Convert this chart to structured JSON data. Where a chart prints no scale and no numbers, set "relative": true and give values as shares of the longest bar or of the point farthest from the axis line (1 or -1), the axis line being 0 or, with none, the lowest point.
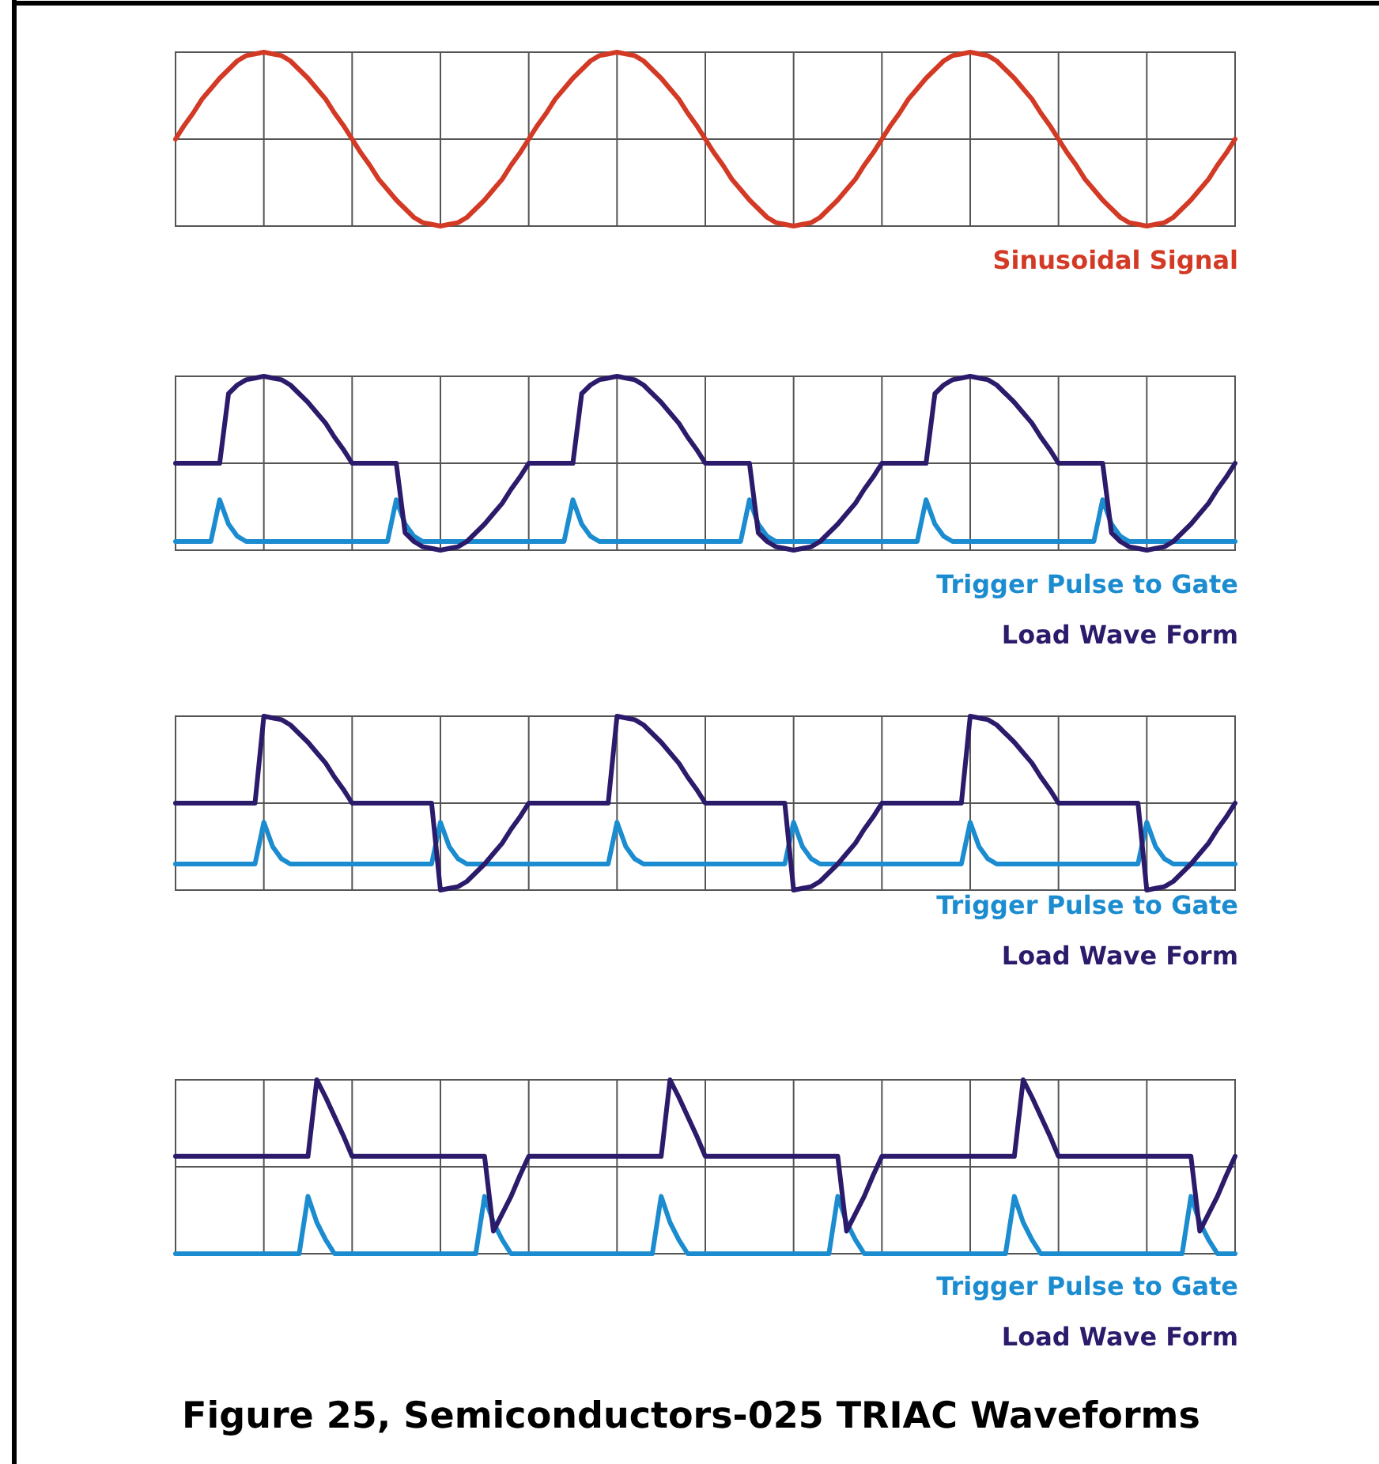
{
  "chart_data": [
    {
      "type": "line",
      "relative": true,
      "grid": true,
      "legend": "bottom right",
      "categories": [
        null,
        null,
        null,
        null,
        null,
        null,
        null,
        null,
        null,
        null,
        null,
        null,
        null,
        null,
        null,
        null,
        null,
        null,
        null,
        null,
        null,
        null,
        null,
        null,
        null,
        null,
        null,
        null,
        null,
        null,
        null,
        null,
        null,
        null,
        null,
        null,
        null,
        null,
        null,
        null,
        null,
        null,
        null,
        null,
        null,
        null,
        null,
        null,
        null,
        null,
        null,
        null,
        null,
        null,
        null,
        null,
        null,
        null,
        null,
        null,
        null,
        null,
        null,
        null,
        null,
        null,
        null,
        null,
        null,
        null,
        null,
        null,
        null,
        null,
        null,
        null,
        null,
        null,
        null,
        null,
        null,
        null,
        null,
        null,
        null,
        null,
        null,
        null,
        null,
        null,
        null,
        null,
        null,
        null,
        null,
        null,
        null,
        null,
        null,
        null,
        null,
        null,
        null,
        null,
        null,
        null,
        null,
        null,
        null,
        null,
        null,
        null,
        null,
        null,
        null,
        null,
        null,
        null,
        null,
        null,
        null
      ],
      "series": [
        {
          "name": "Sinusoidal Signal",
          "color": "#d33a25",
          "values": [
            0.5,
            0.58,
            0.65,
            0.73,
            0.79,
            0.85,
            0.9,
            0.95,
            0.98,
            0.99,
            1,
            0.99,
            0.98,
            0.95,
            0.9,
            0.85,
            0.79,
            0.73,
            0.65,
            0.58,
            0.5,
            0.42,
            0.35,
            0.27,
            0.21,
            0.15,
            0.1,
            0.05,
            0.02,
            0.01,
            0,
            0.01,
            0.02,
            0.05,
            0.1,
            0.15,
            0.21,
            0.27,
            0.35,
            0.42,
            0.5,
            0.58,
            0.65,
            0.73,
            0.79,
            0.85,
            0.9,
            0.95,
            0.98,
            0.99,
            1,
            0.99,
            0.98,
            0.95,
            0.9,
            0.85,
            0.79,
            0.73,
            0.65,
            0.58,
            0.5,
            0.42,
            0.35,
            0.27,
            0.21,
            0.15,
            0.1,
            0.05,
            0.02,
            0.01,
            0,
            0.01,
            0.02,
            0.05,
            0.1,
            0.15,
            0.21,
            0.27,
            0.35,
            0.42,
            0.5,
            0.58,
            0.65,
            0.73,
            0.79,
            0.85,
            0.9,
            0.95,
            0.98,
            0.99,
            1,
            0.99,
            0.98,
            0.95,
            0.9,
            0.85,
            0.79,
            0.73,
            0.65,
            0.58,
            0.5,
            0.42,
            0.35,
            0.27,
            0.21,
            0.15,
            0.1,
            0.05,
            0.02,
            0.01,
            0,
            0.01,
            0.02,
            0.05,
            0.1,
            0.15,
            0.21,
            0.27,
            0.35,
            0.42,
            0.5
          ]
        }
      ]
    },
    {
      "type": "line",
      "relative": true,
      "grid": true,
      "legend": "bottom right",
      "categories": [
        null,
        null,
        null,
        null,
        null,
        null,
        null,
        null,
        null,
        null,
        null,
        null,
        null,
        null,
        null,
        null,
        null,
        null,
        null,
        null,
        null,
        null,
        null,
        null,
        null,
        null,
        null,
        null,
        null,
        null,
        null,
        null,
        null,
        null,
        null,
        null,
        null,
        null,
        null,
        null,
        null,
        null,
        null,
        null,
        null,
        null,
        null,
        null,
        null,
        null,
        null,
        null,
        null,
        null,
        null,
        null,
        null,
        null,
        null,
        null,
        null,
        null,
        null,
        null,
        null,
        null,
        null,
        null,
        null,
        null,
        null,
        null,
        null,
        null,
        null,
        null,
        null,
        null,
        null,
        null,
        null,
        null,
        null,
        null,
        null,
        null,
        null,
        null,
        null,
        null,
        null,
        null,
        null,
        null,
        null,
        null,
        null,
        null,
        null,
        null,
        null,
        null,
        null,
        null,
        null,
        null,
        null,
        null,
        null,
        null,
        null,
        null,
        null,
        null,
        null,
        null,
        null,
        null,
        null,
        null,
        null
      ],
      "series": [
        {
          "name": "Trigger Pulse to Gate",
          "color": "#1b8ccf",
          "values": [
            0.05,
            0.05,
            0.05,
            0.05,
            0.05,
            0.29,
            0.15,
            0.08,
            0.05,
            0.05,
            0.05,
            0.05,
            0.05,
            0.05,
            0.05,
            0.05,
            0.05,
            0.05,
            0.05,
            0.05,
            0.05,
            0.05,
            0.05,
            0.05,
            0.05,
            0.29,
            0.15,
            0.08,
            0.05,
            0.05,
            0.05,
            0.05,
            0.05,
            0.05,
            0.05,
            0.05,
            0.05,
            0.05,
            0.05,
            0.05,
            0.05,
            0.05,
            0.05,
            0.05,
            0.05,
            0.29,
            0.15,
            0.08,
            0.05,
            0.05,
            0.05,
            0.05,
            0.05,
            0.05,
            0.05,
            0.05,
            0.05,
            0.05,
            0.05,
            0.05,
            0.05,
            0.05,
            0.05,
            0.05,
            0.05,
            0.29,
            0.15,
            0.08,
            0.05,
            0.05,
            0.05,
            0.05,
            0.05,
            0.05,
            0.05,
            0.05,
            0.05,
            0.05,
            0.05,
            0.05,
            0.05,
            0.05,
            0.05,
            0.05,
            0.05,
            0.29,
            0.15,
            0.08,
            0.05,
            0.05,
            0.05,
            0.05,
            0.05,
            0.05,
            0.05,
            0.05,
            0.05,
            0.05,
            0.05,
            0.05,
            0.05,
            0.05,
            0.05,
            0.05,
            0.05,
            0.29,
            0.15,
            0.08,
            0.05,
            0.05,
            0.05,
            0.05,
            0.05,
            0.05,
            0.05,
            0.05,
            0.05,
            0.05,
            0.05,
            0.05,
            0.05
          ]
        },
        {
          "name": "Load Wave Form",
          "color": "#2c1a6b",
          "values": [
            0.5,
            0.5,
            0.5,
            0.5,
            0.5,
            0.5,
            0.9,
            0.95,
            0.98,
            0.99,
            1,
            0.99,
            0.98,
            0.95,
            0.9,
            0.85,
            0.79,
            0.73,
            0.65,
            0.58,
            0.5,
            0.5,
            0.5,
            0.5,
            0.5,
            0.5,
            0.1,
            0.05,
            0.02,
            0.01,
            0,
            0.01,
            0.02,
            0.05,
            0.1,
            0.15,
            0.21,
            0.27,
            0.35,
            0.42,
            0.5,
            0.5,
            0.5,
            0.5,
            0.5,
            0.5,
            0.9,
            0.95,
            0.98,
            0.99,
            1,
            0.99,
            0.98,
            0.95,
            0.9,
            0.85,
            0.79,
            0.73,
            0.65,
            0.58,
            0.5,
            0.5,
            0.5,
            0.5,
            0.5,
            0.5,
            0.1,
            0.05,
            0.02,
            0.01,
            0,
            0.01,
            0.02,
            0.05,
            0.1,
            0.15,
            0.21,
            0.27,
            0.35,
            0.42,
            0.5,
            0.5,
            0.5,
            0.5,
            0.5,
            0.5,
            0.9,
            0.95,
            0.98,
            0.99,
            1,
            0.99,
            0.98,
            0.95,
            0.9,
            0.85,
            0.79,
            0.73,
            0.65,
            0.58,
            0.5,
            0.5,
            0.5,
            0.5,
            0.5,
            0.5,
            0.1,
            0.05,
            0.02,
            0.01,
            0,
            0.01,
            0.02,
            0.05,
            0.1,
            0.15,
            0.21,
            0.27,
            0.35,
            0.42,
            0.5
          ]
        }
      ]
    },
    {
      "type": "line",
      "relative": true,
      "grid": true,
      "legend": "bottom right",
      "categories": [
        null,
        null,
        null,
        null,
        null,
        null,
        null,
        null,
        null,
        null,
        null,
        null,
        null,
        null,
        null,
        null,
        null,
        null,
        null,
        null,
        null,
        null,
        null,
        null,
        null,
        null,
        null,
        null,
        null,
        null,
        null,
        null,
        null,
        null,
        null,
        null,
        null,
        null,
        null,
        null,
        null,
        null,
        null,
        null,
        null,
        null,
        null,
        null,
        null,
        null,
        null,
        null,
        null,
        null,
        null,
        null,
        null,
        null,
        null,
        null,
        null,
        null,
        null,
        null,
        null,
        null,
        null,
        null,
        null,
        null,
        null,
        null,
        null,
        null,
        null,
        null,
        null,
        null,
        null,
        null,
        null,
        null,
        null,
        null,
        null,
        null,
        null,
        null,
        null,
        null,
        null,
        null,
        null,
        null,
        null,
        null,
        null,
        null,
        null,
        null,
        null,
        null,
        null,
        null,
        null,
        null,
        null,
        null,
        null,
        null,
        null,
        null,
        null,
        null,
        null,
        null,
        null,
        null,
        null,
        null,
        null
      ],
      "series": [
        {
          "name": "Trigger Pulse to Gate",
          "color": "#1b8ccf",
          "values": [
            0.15,
            0.15,
            0.15,
            0.15,
            0.15,
            0.15,
            0.15,
            0.15,
            0.15,
            0.15,
            0.39,
            0.25,
            0.18,
            0.15,
            0.15,
            0.15,
            0.15,
            0.15,
            0.15,
            0.15,
            0.15,
            0.15,
            0.15,
            0.15,
            0.15,
            0.15,
            0.15,
            0.15,
            0.15,
            0.15,
            0.39,
            0.25,
            0.18,
            0.15,
            0.15,
            0.15,
            0.15,
            0.15,
            0.15,
            0.15,
            0.15,
            0.15,
            0.15,
            0.15,
            0.15,
            0.15,
            0.15,
            0.15,
            0.15,
            0.15,
            0.39,
            0.25,
            0.18,
            0.15,
            0.15,
            0.15,
            0.15,
            0.15,
            0.15,
            0.15,
            0.15,
            0.15,
            0.15,
            0.15,
            0.15,
            0.15,
            0.15,
            0.15,
            0.15,
            0.15,
            0.39,
            0.25,
            0.18,
            0.15,
            0.15,
            0.15,
            0.15,
            0.15,
            0.15,
            0.15,
            0.15,
            0.15,
            0.15,
            0.15,
            0.15,
            0.15,
            0.15,
            0.15,
            0.15,
            0.15,
            0.39,
            0.25,
            0.18,
            0.15,
            0.15,
            0.15,
            0.15,
            0.15,
            0.15,
            0.15,
            0.15,
            0.15,
            0.15,
            0.15,
            0.15,
            0.15,
            0.15,
            0.15,
            0.15,
            0.15,
            0.39,
            0.25,
            0.18,
            0.15,
            0.15,
            0.15,
            0.15,
            0.15,
            0.15,
            0.15,
            0.15
          ]
        },
        {
          "name": "Load Wave Form",
          "color": "#2c1a6b",
          "values": [
            0.5,
            0.5,
            0.5,
            0.5,
            0.5,
            0.5,
            0.5,
            0.5,
            0.5,
            0.5,
            1,
            0.99,
            0.98,
            0.95,
            0.9,
            0.85,
            0.79,
            0.73,
            0.65,
            0.58,
            0.5,
            0.5,
            0.5,
            0.5,
            0.5,
            0.5,
            0.5,
            0.5,
            0.5,
            0.5,
            0,
            0.01,
            0.02,
            0.05,
            0.1,
            0.15,
            0.21,
            0.27,
            0.35,
            0.42,
            0.5,
            0.5,
            0.5,
            0.5,
            0.5,
            0.5,
            0.5,
            0.5,
            0.5,
            0.5,
            1,
            0.99,
            0.98,
            0.95,
            0.9,
            0.85,
            0.79,
            0.73,
            0.65,
            0.58,
            0.5,
            0.5,
            0.5,
            0.5,
            0.5,
            0.5,
            0.5,
            0.5,
            0.5,
            0.5,
            0,
            0.01,
            0.02,
            0.05,
            0.1,
            0.15,
            0.21,
            0.27,
            0.35,
            0.42,
            0.5,
            0.5,
            0.5,
            0.5,
            0.5,
            0.5,
            0.5,
            0.5,
            0.5,
            0.5,
            1,
            0.99,
            0.98,
            0.95,
            0.9,
            0.85,
            0.79,
            0.73,
            0.65,
            0.58,
            0.5,
            0.5,
            0.5,
            0.5,
            0.5,
            0.5,
            0.5,
            0.5,
            0.5,
            0.5,
            0,
            0.01,
            0.02,
            0.05,
            0.1,
            0.15,
            0.21,
            0.27,
            0.35,
            0.42,
            0.5
          ]
        }
      ]
    },
    {
      "type": "line",
      "relative": true,
      "grid": true,
      "legend": "bottom right",
      "title": "Figure 25, Semiconductors-025 TRIAC Waveforms",
      "categories": [
        null,
        null,
        null,
        null,
        null,
        null,
        null,
        null,
        null,
        null,
        null,
        null,
        null,
        null,
        null,
        null,
        null,
        null,
        null,
        null,
        null,
        null,
        null,
        null,
        null,
        null,
        null,
        null,
        null,
        null,
        null,
        null,
        null,
        null,
        null,
        null,
        null,
        null,
        null,
        null,
        null,
        null,
        null,
        null,
        null,
        null,
        null,
        null,
        null,
        null,
        null,
        null,
        null,
        null,
        null,
        null,
        null,
        null,
        null,
        null,
        null,
        null,
        null,
        null,
        null,
        null,
        null,
        null,
        null,
        null,
        null,
        null,
        null,
        null,
        null,
        null,
        null,
        null,
        null,
        null,
        null,
        null,
        null,
        null,
        null,
        null,
        null,
        null,
        null,
        null,
        null,
        null,
        null,
        null,
        null,
        null,
        null,
        null,
        null,
        null,
        null,
        null,
        null,
        null,
        null,
        null,
        null,
        null,
        null,
        null,
        null,
        null,
        null,
        null,
        null,
        null,
        null,
        null,
        null,
        null,
        null
      ],
      "series": [
        {
          "name": "Trigger Pulse to Gate",
          "color": "#1b8ccf",
          "values": [
            0,
            0,
            0,
            0,
            0,
            0,
            0,
            0,
            0,
            0,
            0,
            0,
            0,
            0,
            0,
            0.33,
            0.18,
            0.08,
            0,
            0,
            0,
            0,
            0,
            0,
            0,
            0,
            0,
            0,
            0,
            0,
            0,
            0,
            0,
            0,
            0,
            0.33,
            0.18,
            0.08,
            0,
            0,
            0,
            0,
            0,
            0,
            0,
            0,
            0,
            0,
            0,
            0,
            0,
            0,
            0,
            0,
            0,
            0.33,
            0.18,
            0.08,
            0,
            0,
            0,
            0,
            0,
            0,
            0,
            0,
            0,
            0,
            0,
            0,
            0,
            0,
            0,
            0,
            0,
            0.33,
            0.18,
            0.08,
            0,
            0,
            0,
            0,
            0,
            0,
            0,
            0,
            0,
            0,
            0,
            0,
            0,
            0,
            0,
            0,
            0,
            0.33,
            0.18,
            0.08,
            0,
            0,
            0,
            0,
            0,
            0,
            0,
            0,
            0,
            0,
            0,
            0,
            0,
            0,
            0,
            0,
            0,
            0.33,
            0.18,
            0.08,
            0,
            0,
            0
          ]
        },
        {
          "name": "Load Wave Form",
          "color": "#2c1a6b",
          "values": [
            0.56,
            0.56,
            0.56,
            0.56,
            0.56,
            0.56,
            0.56,
            0.56,
            0.56,
            0.56,
            0.56,
            0.56,
            0.56,
            0.56,
            0.56,
            0.56,
            1,
            0.9,
            0.79,
            0.68,
            0.56,
            0.56,
            0.56,
            0.56,
            0.56,
            0.56,
            0.56,
            0.56,
            0.56,
            0.56,
            0.56,
            0.56,
            0.56,
            0.56,
            0.56,
            0.56,
            0.13,
            0.23,
            0.33,
            0.45,
            0.56,
            0.56,
            0.56,
            0.56,
            0.56,
            0.56,
            0.56,
            0.56,
            0.56,
            0.56,
            0.56,
            0.56,
            0.56,
            0.56,
            0.56,
            0.56,
            1,
            0.9,
            0.79,
            0.68,
            0.56,
            0.56,
            0.56,
            0.56,
            0.56,
            0.56,
            0.56,
            0.56,
            0.56,
            0.56,
            0.56,
            0.56,
            0.56,
            0.56,
            0.56,
            0.56,
            0.13,
            0.23,
            0.33,
            0.45,
            0.56,
            0.56,
            0.56,
            0.56,
            0.56,
            0.56,
            0.56,
            0.56,
            0.56,
            0.56,
            0.56,
            0.56,
            0.56,
            0.56,
            0.56,
            0.56,
            1,
            0.9,
            0.79,
            0.68,
            0.56,
            0.56,
            0.56,
            0.56,
            0.56,
            0.56,
            0.56,
            0.56,
            0.56,
            0.56,
            0.56,
            0.56,
            0.56,
            0.56,
            0.56,
            0.56,
            0.13,
            0.23,
            0.33,
            0.45,
            0.56
          ]
        }
      ]
    }
  ]
}
